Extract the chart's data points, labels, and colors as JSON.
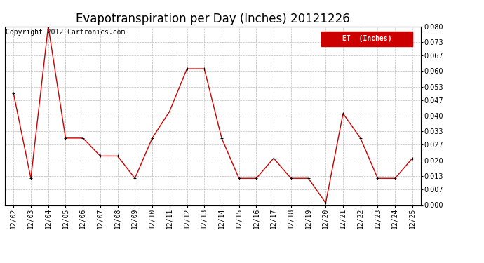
{
  "title": "Evapotranspiration per Day (Inches) 20121226",
  "copyright_text": "Copyright 2012 Cartronics.com",
  "legend_label": "ET  (Inches)",
  "legend_bg": "#cc0000",
  "legend_text_color": "#ffffff",
  "line_color": "#cc0000",
  "marker_color": "#000000",
  "background_color": "#ffffff",
  "grid_color": "#bbbbbb",
  "dates": [
    "12/02",
    "12/03",
    "12/04",
    "12/05",
    "12/06",
    "12/07",
    "12/08",
    "12/09",
    "12/10",
    "12/11",
    "12/12",
    "12/13",
    "12/14",
    "12/15",
    "12/16",
    "12/17",
    "12/18",
    "12/19",
    "12/20",
    "12/21",
    "12/22",
    "12/23",
    "12/24",
    "12/25"
  ],
  "values": [
    0.05,
    0.012,
    0.08,
    0.03,
    0.03,
    0.022,
    0.022,
    0.012,
    0.03,
    0.042,
    0.061,
    0.061,
    0.03,
    0.012,
    0.012,
    0.021,
    0.012,
    0.012,
    0.001,
    0.041,
    0.03,
    0.012,
    0.012,
    0.021
  ],
  "ylim": [
    0.0,
    0.08
  ],
  "yticks": [
    0.0,
    0.007,
    0.013,
    0.02,
    0.027,
    0.033,
    0.04,
    0.047,
    0.053,
    0.06,
    0.067,
    0.073,
    0.08
  ],
  "title_fontsize": 12,
  "tick_fontsize": 7,
  "copyright_fontsize": 7
}
